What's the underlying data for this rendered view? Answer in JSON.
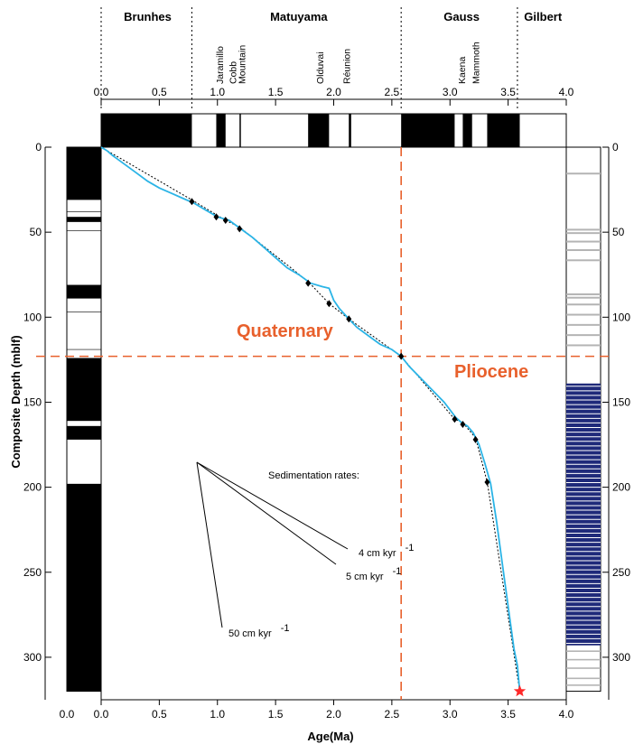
{
  "colors": {
    "epoch": "#e8602c",
    "age_curve": "#2bb4e6",
    "tie_points": "#000000",
    "fit_line": "#000000",
    "base_star": "#ff2a2a",
    "strip_blue": "#1f2a7a",
    "strip_gray": "#b4b4b4"
  },
  "chart_data": {
    "type": "line",
    "xlabel": "Age(Ma)",
    "ylabel": "Composite Depth (mblf)",
    "xlim": [
      0,
      4
    ],
    "ylim": [
      0,
      325
    ],
    "y_inverted": true,
    "x_ticks": [
      "0.0",
      "0.5",
      "1.0",
      "1.5",
      "2.0",
      "2.5",
      "3.0",
      "3.5",
      "4.0"
    ],
    "y_ticks": [
      "0",
      "50",
      "100",
      "150",
      "200",
      "250",
      "300"
    ],
    "grid": false,
    "chrons": [
      {
        "name": "Brunhes",
        "label_age": 0.4
      },
      {
        "name": "Matuyama",
        "label_age": 1.7
      },
      {
        "name": "Gauss",
        "label_age": 3.1
      },
      {
        "name": "Gilbert",
        "label_age": 3.8
      }
    ],
    "chron_boundaries": [
      0.0,
      0.78,
      2.58,
      3.58
    ],
    "subchrons": [
      {
        "name": "Jaramillo",
        "age": 1.05
      },
      {
        "name": "Cobb",
        "age": 1.16
      },
      {
        "name": "Mountain",
        "age": 1.24
      },
      {
        "name": "Olduvai",
        "age": 1.91
      },
      {
        "name": "Réunion",
        "age": 2.14
      },
      {
        "name": "Kaena",
        "age": 3.13
      },
      {
        "name": "Mammoth",
        "age": 3.25
      }
    ],
    "polarity_normal": [
      [
        0.0,
        0.78
      ],
      [
        0.99,
        1.07
      ],
      [
        1.19,
        1.2
      ],
      [
        1.78,
        1.96
      ],
      [
        2.13,
        2.15
      ],
      [
        2.58,
        3.04
      ],
      [
        3.11,
        3.19
      ],
      [
        3.32,
        3.6
      ]
    ],
    "depth_polarity_normal": [
      [
        0,
        31
      ],
      [
        41,
        44
      ],
      [
        81,
        89
      ],
      [
        124,
        161
      ],
      [
        164,
        172
      ],
      [
        198,
        320
      ]
    ],
    "strip_gray": [
      15,
      48,
      50,
      55,
      60,
      66,
      86,
      88,
      92,
      98,
      104,
      110,
      116
    ],
    "strip_blue_range": [
      139,
      293
    ],
    "series": [
      {
        "name": "",
        "kind": "age_curve",
        "points": [
          [
            0,
            0
          ],
          [
            0.05,
            2
          ],
          [
            0.1,
            5
          ],
          [
            0.2,
            10
          ],
          [
            0.3,
            15
          ],
          [
            0.4,
            20
          ],
          [
            0.5,
            24
          ],
          [
            0.6,
            27
          ],
          [
            0.7,
            30
          ],
          [
            0.8,
            33
          ],
          [
            0.9,
            37
          ],
          [
            1.0,
            41
          ],
          [
            1.1,
            43
          ],
          [
            1.2,
            48
          ],
          [
            1.3,
            53
          ],
          [
            1.4,
            59
          ],
          [
            1.5,
            65
          ],
          [
            1.6,
            71
          ],
          [
            1.7,
            75
          ],
          [
            1.8,
            80
          ],
          [
            1.9,
            82
          ],
          [
            1.96,
            83
          ],
          [
            2.0,
            90
          ],
          [
            2.05,
            95
          ],
          [
            2.13,
            101
          ],
          [
            2.2,
            106
          ],
          [
            2.3,
            111
          ],
          [
            2.4,
            116
          ],
          [
            2.5,
            119
          ],
          [
            2.58,
            123
          ],
          [
            2.65,
            129
          ],
          [
            2.75,
            136
          ],
          [
            2.85,
            143
          ],
          [
            2.95,
            150
          ],
          [
            3.05,
            159
          ],
          [
            3.1,
            162
          ],
          [
            3.15,
            164
          ],
          [
            3.2,
            168
          ],
          [
            3.25,
            175
          ],
          [
            3.3,
            186
          ],
          [
            3.35,
            198
          ],
          [
            3.4,
            220
          ],
          [
            3.45,
            245
          ],
          [
            3.5,
            270
          ],
          [
            3.55,
            295
          ],
          [
            3.58,
            305
          ],
          [
            3.6,
            320
          ]
        ]
      },
      {
        "name": "",
        "kind": "fit_line",
        "points": [
          [
            0,
            0
          ],
          [
            0.78,
            31
          ],
          [
            1.07,
            43
          ],
          [
            1.19,
            47
          ],
          [
            1.78,
            79
          ],
          [
            1.96,
            92
          ],
          [
            2.13,
            101
          ],
          [
            2.58,
            123
          ],
          [
            3.04,
            160
          ],
          [
            3.11,
            162
          ],
          [
            3.22,
            171
          ],
          [
            3.32,
            197
          ],
          [
            3.6,
            320
          ]
        ]
      },
      {
        "name": "",
        "kind": "tie_points",
        "points": [
          [
            0.78,
            32
          ],
          [
            0.99,
            41
          ],
          [
            1.07,
            43
          ],
          [
            1.19,
            48
          ],
          [
            1.78,
            80
          ],
          [
            1.96,
            92
          ],
          [
            2.13,
            101
          ],
          [
            2.58,
            123
          ],
          [
            3.04,
            160
          ],
          [
            3.11,
            163
          ],
          [
            3.22,
            172
          ],
          [
            3.32,
            197
          ]
        ]
      },
      {
        "name": "",
        "kind": "base",
        "points": [
          [
            3.6,
            320
          ]
        ]
      }
    ],
    "reference_lines": {
      "x": 2.58,
      "y": 123
    },
    "annotations": {
      "quaternary": "Quaternary",
      "pliocene": "Pliocene",
      "sed_title": "Sedimentation rates:",
      "rates": [
        {
          "text": "4 cm kyr",
          "exp": "-1",
          "rate_cm_kyr": 4
        },
        {
          "text": "5 cm kyr",
          "exp": "-1",
          "rate_cm_kyr": 5
        },
        {
          "text": "50 cm kyr",
          "exp": "-1",
          "rate_cm_kyr": 50
        }
      ]
    }
  }
}
